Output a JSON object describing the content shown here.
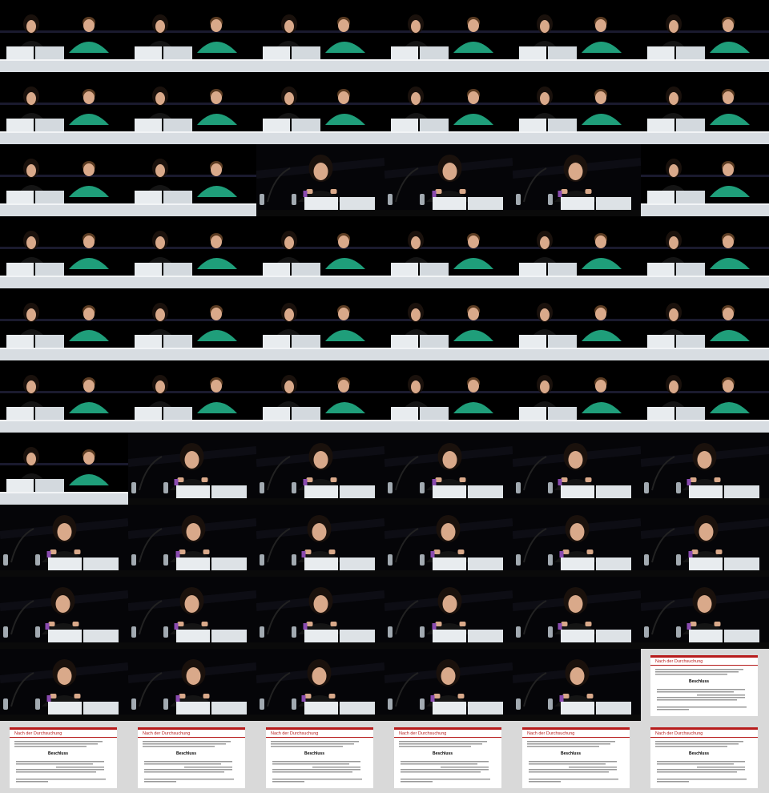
{
  "contact_sheet": {
    "columns": 6,
    "rows": 11,
    "frames": [
      "duo",
      "duo",
      "duo",
      "duo",
      "duo",
      "duo",
      "duo",
      "duo",
      "duo",
      "duo",
      "duo",
      "duo",
      "duo",
      "duo",
      "solo",
      "solo",
      "solo",
      "duo",
      "duo",
      "duo",
      "duo",
      "duo",
      "duo",
      "duo",
      "duo",
      "duo",
      "duo",
      "duo",
      "duo",
      "duo",
      "duo",
      "duo",
      "duo",
      "duo",
      "duo",
      "duo",
      "duo",
      "solo",
      "solo",
      "solo",
      "solo",
      "solo",
      "solo",
      "solo",
      "solo",
      "solo",
      "solo",
      "solo",
      "solo",
      "solo",
      "solo",
      "solo",
      "solo",
      "solo",
      "solo",
      "solo",
      "solo",
      "solo",
      "solo",
      "slide",
      "slide",
      "slide",
      "slide",
      "slide",
      "slide",
      "slide"
    ]
  },
  "slide": {
    "title": "Nach der Durchsuchung",
    "emphasis": "Beschluss",
    "palette": {
      "header": "#b71c1c",
      "paper": "#ffffff",
      "bg": "#d9d9d9"
    }
  },
  "colors": {
    "background": "#000000",
    "desk": "#d8dde2",
    "shirt_green": "#1f9e7a",
    "black_top": "#141414",
    "skin": "#d9a98a",
    "hair_dark": "#1a110c",
    "hair_brown": "#5a3b22",
    "laptop": "#e8ecef",
    "purple": "#8a4bb0"
  }
}
